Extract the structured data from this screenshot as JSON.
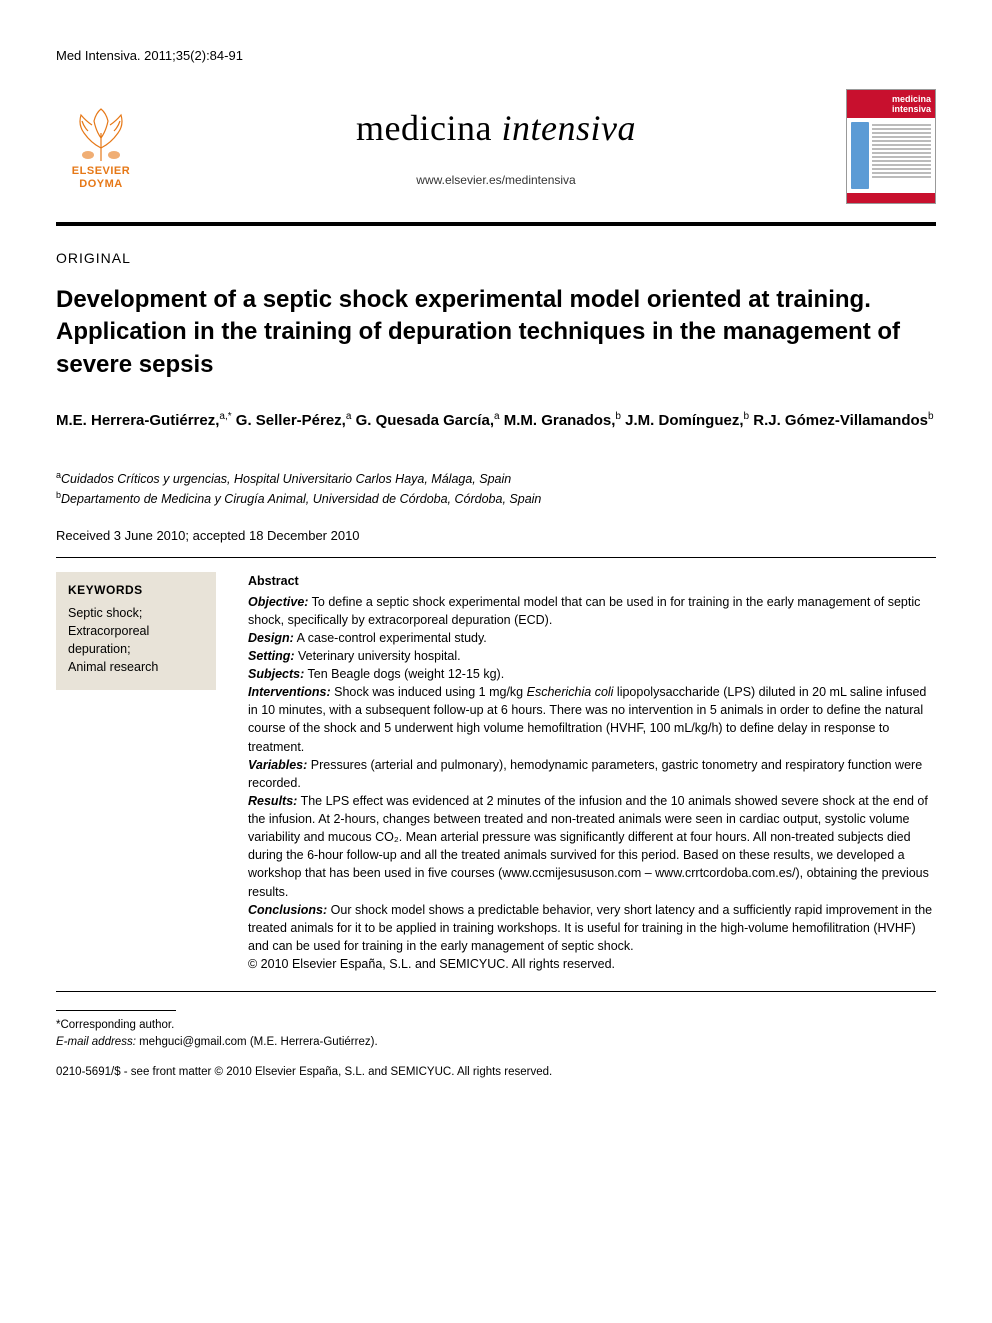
{
  "citation": "Med Intensiva. 2011;35(2):84-91",
  "publisher": {
    "name_line1": "ELSEVIER",
    "name_line2": "DOYMA",
    "tree_color": "#e67817"
  },
  "journal": {
    "title_plain": "medicina ",
    "title_italic": "intensiva",
    "url": "www.elsevier.es/medintensiva",
    "cover_header": "medicina intensiva",
    "cover_accent": "#c8102e",
    "cover_side": "#5b9bd5"
  },
  "article": {
    "type": "ORIGINAL",
    "title": "Development of a septic shock experimental model oriented at training. Application in the training of depuration techniques in the management of severe sepsis",
    "authors_html": "M.E. Herrera-Gutiérrez,<sup>a,*</sup> G. Seller-Pérez,<sup>a</sup> G. Quesada García,<sup>a</sup> M.M. Granados,<sup>b</sup> J.M. Domínguez,<sup>b</sup> R.J. Gómez-Villamandos<sup>b</sup>",
    "affiliations": [
      {
        "mark": "a",
        "text": "Cuidados Críticos y urgencias, Hospital Universitario Carlos Haya, Málaga, Spain"
      },
      {
        "mark": "b",
        "text": "Departamento de Medicina y Cirugía Animal, Universidad de Córdoba, Córdoba, Spain"
      }
    ],
    "dates": "Received 3 June 2010; accepted 18 December 2010",
    "keywords_heading": "KEYWORDS",
    "keywords": "Septic shock;\nExtracorporeal depuration;\nAnimal research",
    "abstract_heading": "Abstract",
    "abstract_sections": [
      {
        "label": "Objective:",
        "text": " To define a septic shock experimental model that can be used in for training in the early management of septic shock, specifically by extracorporeal depuration (ECD)."
      },
      {
        "label": "Design:",
        "text": " A case-control experimental study."
      },
      {
        "label": "Setting:",
        "text": " Veterinary university hospital."
      },
      {
        "label": "Subjects:",
        "text": " Ten Beagle dogs (weight 12-15 kg)."
      },
      {
        "label": "Interventions:",
        "text": " Shock was induced using 1 mg/kg Escherichia coli lipopolysaccharide (LPS) diluted in 20 mL saline infused in 10 minutes, with a subsequent follow-up at 6 hours. There was no intervention in 5 animals in order to define the natural course of the shock and 5 underwent high volume hemofiltration (HVHF, 100 mL/kg/h) to define delay in response to treatment."
      },
      {
        "label": "Variables:",
        "text": " Pressures (arterial and pulmonary), hemodynamic parameters, gastric tonometry and respiratory function were recorded."
      },
      {
        "label": "Results:",
        "text": " The LPS effect was evidenced at 2 minutes of the infusion and the 10 animals showed severe shock at the end of the infusion. At 2-hours, changes between treated and non-treated animals were seen in cardiac output, systolic volume variability and mucous CO₂. Mean arterial pressure was significantly different at four hours. All non-treated subjects died during the 6-hour follow-up and all the treated animals survived for this period. Based on these results, we developed a workshop that has been used in five courses (www.ccmijesususon.com – www.crrtcordoba.com.es/), obtaining the previous results."
      },
      {
        "label": "Conclusions:",
        "text": " Our shock model shows a predictable behavior, very short latency and a sufficiently rapid improvement in the treated animals for it to be applied in training workshops. It is useful for training in the high-volume hemofilitration (HVHF) and can be used for training in the early management of septic shock."
      }
    ],
    "copyright_abstract": "© 2010 Elsevier España, S.L. and SEMICYUC. All rights reserved."
  },
  "corresponding": {
    "mark": "*Corresponding author.",
    "email_label": "E-mail address:",
    "email": "mehguci@gmail.com",
    "email_name": "(M.E. Herrera-Gutiérrez)."
  },
  "footer": "0210-5691/$ - see front matter © 2010 Elsevier España, S.L. and SEMICYUC. All rights reserved."
}
